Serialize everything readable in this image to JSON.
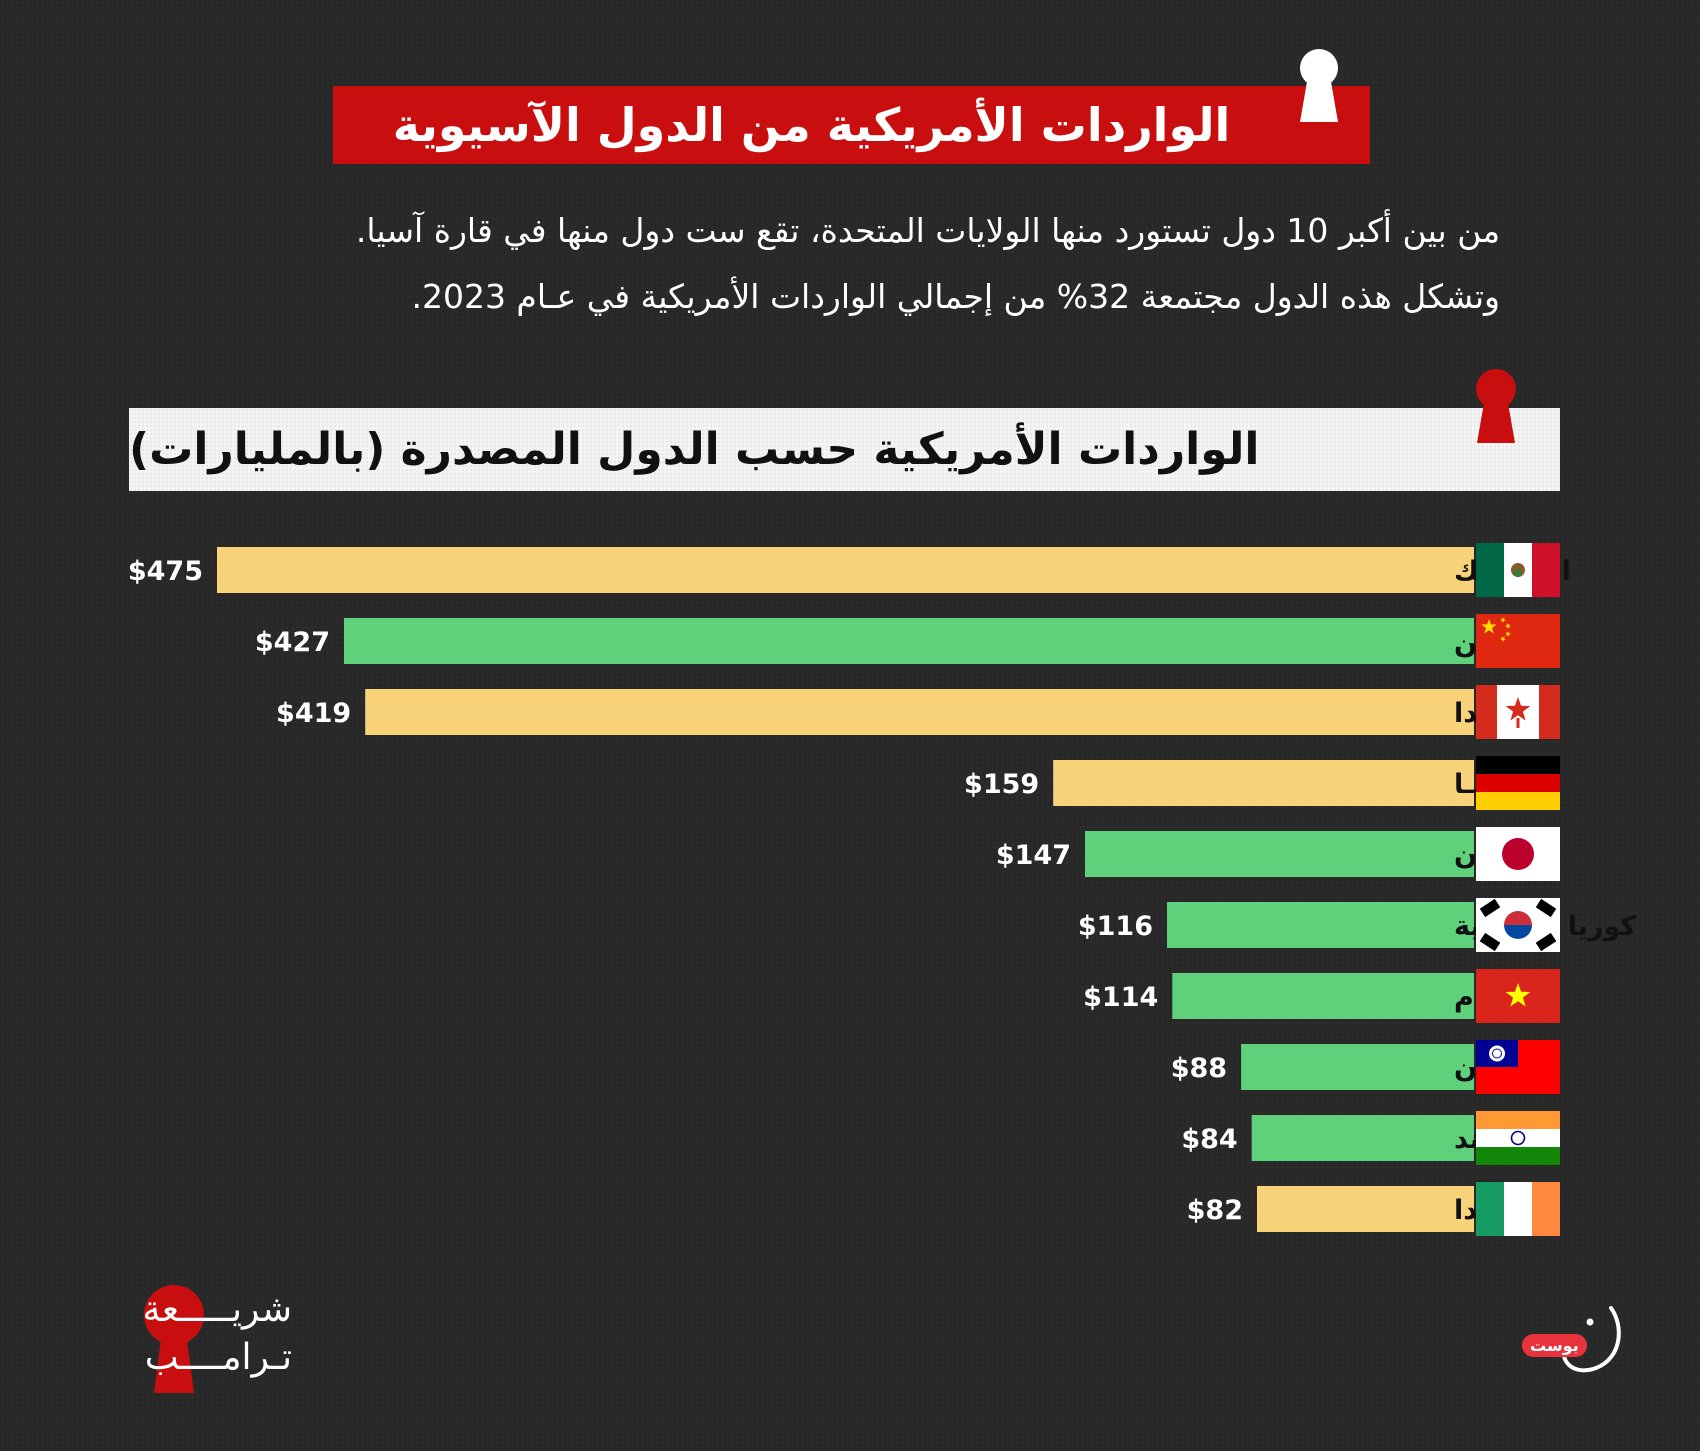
{
  "header": {
    "title": "الواردات الأمريكية من الدول الآسيوية",
    "intro_line1": "من بين أكبر 10 دول تستورد منها الولايات المتحدة، تقع ست دول منها في قارة آسيا.",
    "intro_line2": "وتشكل هذه الدول مجتمعة 32% من إجمالي الواردات الأمريكية في عـام 2023."
  },
  "chart_data": {
    "type": "bar",
    "orientation": "horizontal",
    "title": "الواردات الأمريكية حسب الدول المصدرة (بالمليارات)",
    "categories": [
      "المكسيك",
      "الصين",
      "كندا",
      "ألمانيـا",
      "اليـابـان",
      "كوريا الجنوبية",
      "فيتنـام",
      "تـايـوان",
      "الهند",
      "إيرلندا"
    ],
    "values": [
      475,
      427,
      419,
      159,
      147,
      116,
      114,
      88,
      84,
      82
    ],
    "value_labels": [
      "$475",
      "$427",
      "$419",
      "$159",
      "$147",
      "$116",
      "$114",
      "$88",
      "$84",
      "$82"
    ],
    "flags": [
      "mexico-flag",
      "china-flag",
      "canada-flag",
      "germany-flag",
      "japan-flag",
      "south-korea-flag",
      "vietnam-flag",
      "taiwan-flag",
      "india-flag",
      "ireland-flag"
    ],
    "asian": [
      false,
      true,
      false,
      false,
      true,
      true,
      true,
      true,
      true,
      false
    ],
    "colors": {
      "asian": "#5fd17a",
      "other": "#f8d37a",
      "brand_red": "#c80e0e"
    }
  },
  "footer": {
    "logo_left_line1": "شريـــــعة",
    "logo_left_line2": "تـرامــــب",
    "logo_right_badge": "بوست"
  }
}
